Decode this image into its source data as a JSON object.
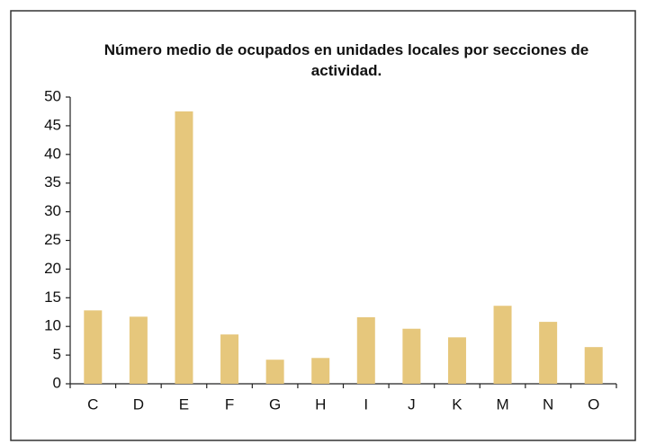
{
  "chart_data": {
    "type": "bar",
    "title": "Número medio de ocupados en unidades locales por secciones de actividad.",
    "categories": [
      "C",
      "D",
      "E",
      "F",
      "G",
      "H",
      "I",
      "J",
      "K",
      "M",
      "N",
      "O"
    ],
    "values": [
      12.8,
      11.7,
      47.5,
      8.6,
      4.2,
      4.5,
      11.6,
      9.6,
      8.1,
      13.6,
      10.8,
      6.4
    ],
    "color": "#e6c77c",
    "ylim": [
      0,
      50
    ],
    "yticks": [
      0,
      5,
      10,
      15,
      20,
      25,
      30,
      35,
      40,
      45,
      50
    ],
    "grid": false
  }
}
